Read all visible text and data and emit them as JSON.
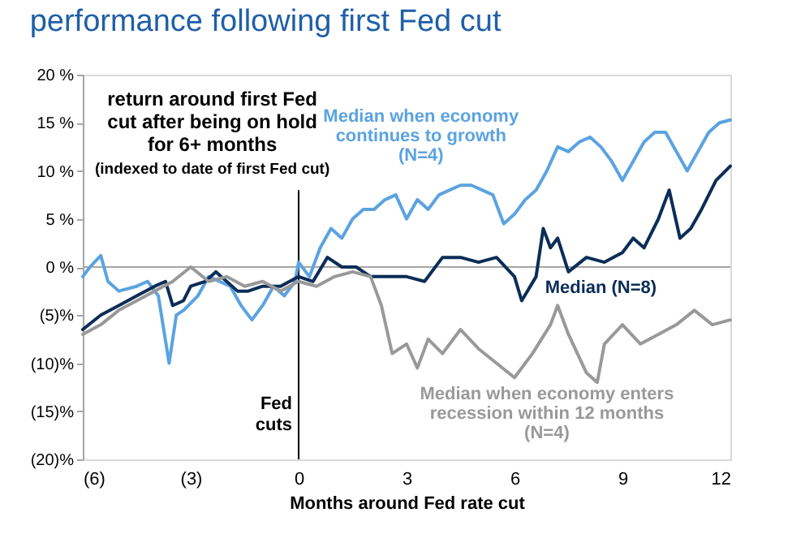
{
  "chart_data": {
    "type": "line",
    "title": "performance following first Fed cut",
    "xlabel": "Months around Fed rate cut",
    "annotations": [
      "return around first Fed cut after being on hold for 6+ months",
      "(indexed to date of first Fed cut)"
    ],
    "xlim": [
      -6,
      12
    ],
    "xticks": [
      {
        "value": -6,
        "label": "(6)"
      },
      {
        "value": -3,
        "label": "(3)"
      },
      0,
      3,
      6,
      9,
      12
    ],
    "ylim": [
      -20,
      20
    ],
    "yticks": [
      {
        "value": -20,
        "label": "(20)%"
      },
      {
        "value": -15,
        "label": "(15)%"
      },
      {
        "value": -10,
        "label": "(10)%"
      },
      {
        "value": -5,
        "label": "(5)%"
      },
      {
        "value": 0,
        "label": "0 %"
      },
      {
        "value": 5,
        "label": "5 %"
      },
      {
        "value": 10,
        "label": "10 %"
      },
      {
        "value": 15,
        "label": "15 %"
      },
      {
        "value": 20,
        "label": "20 %"
      }
    ],
    "grid": false,
    "line_style": "solid",
    "marker": "none",
    "ref_lines": [
      {
        "axis": "x",
        "value": 0,
        "label": "Fed cuts",
        "color": "#000000"
      },
      {
        "axis": "y",
        "value": 0,
        "color": "#a6a6a6"
      }
    ],
    "series": [
      {
        "name": "Median when economy continues to growth (N=4)",
        "color": "#5ba3e0",
        "x": [
          -6,
          -5.8,
          -5.5,
          -5.3,
          -5,
          -4.5,
          -4.2,
          -3.9,
          -3.6,
          -3.4,
          -3.2,
          -2.8,
          -2.5,
          -2.2,
          -1.9,
          -1.6,
          -1.3,
          -1,
          -0.7,
          -0.4,
          -0.1,
          0,
          0.3,
          0.6,
          0.9,
          1.2,
          1.5,
          1.8,
          2.1,
          2.4,
          2.7,
          3,
          3.3,
          3.6,
          3.9,
          4.2,
          4.5,
          4.8,
          5.1,
          5.4,
          5.7,
          6,
          6.3,
          6.6,
          6.9,
          7.2,
          7.5,
          7.8,
          8.1,
          8.4,
          8.7,
          9,
          9.3,
          9.6,
          9.9,
          10.2,
          10.5,
          10.8,
          11.1,
          11.4,
          11.7,
          12
        ],
        "values": [
          -1,
          0,
          1.2,
          -1.5,
          -2.5,
          -2,
          -1.5,
          -3,
          -10,
          -5,
          -4.5,
          -3,
          -1,
          -1.5,
          -2,
          -4,
          -5.5,
          -4,
          -2,
          -3,
          -1.5,
          0.5,
          -1,
          2,
          4,
          3,
          5,
          6,
          6,
          7,
          7.5,
          5,
          7,
          6,
          7.5,
          8,
          8.5,
          8.5,
          8,
          7.5,
          4.5,
          5.5,
          7,
          8,
          10,
          12.5,
          12,
          13,
          13.5,
          12.5,
          11,
          9,
          11,
          13,
          14,
          14,
          12,
          10,
          12,
          14,
          15,
          15.3
        ]
      },
      {
        "name": "Median (N=8)",
        "color": "#0b2d57",
        "x": [
          -6,
          -5.5,
          -5,
          -4.5,
          -4,
          -3.7,
          -3.5,
          -3.2,
          -3,
          -2.6,
          -2.3,
          -2,
          -1.7,
          -1.4,
          -1,
          -0.5,
          0,
          0.4,
          0.8,
          1.2,
          1.6,
          2,
          2.5,
          3,
          3.5,
          4,
          4.5,
          5,
          5.5,
          6,
          6.2,
          6.6,
          6.8,
          7,
          7.2,
          7.5,
          8,
          8.5,
          9,
          9.3,
          9.6,
          10,
          10.3,
          10.6,
          10.9,
          11.2,
          11.6,
          12
        ],
        "values": [
          -6.5,
          -5,
          -4,
          -3,
          -2,
          -1.5,
          -4,
          -3.5,
          -2,
          -1.5,
          -0.5,
          -1.5,
          -2.5,
          -2.5,
          -2,
          -2,
          -1,
          -1.5,
          1,
          0,
          0,
          -1,
          -1,
          -1,
          -1.5,
          1,
          1,
          0.5,
          1,
          -1,
          -3.5,
          -1,
          4,
          2,
          3,
          -0.5,
          1,
          0.5,
          1.5,
          3,
          2,
          5,
          8,
          3,
          4,
          6,
          9,
          10.5
        ]
      },
      {
        "name": "Median when economy enters recession within 12 months (N=4)",
        "color": "#999999",
        "x": [
          -6,
          -5.5,
          -5,
          -4.5,
          -4,
          -3.5,
          -3,
          -2.5,
          -2,
          -1.5,
          -1,
          -0.5,
          0,
          0.5,
          1,
          1.5,
          2,
          2.3,
          2.6,
          3,
          3.3,
          3.6,
          4,
          4.5,
          5,
          5.5,
          6,
          6.5,
          7,
          7.2,
          7.5,
          8,
          8.3,
          8.5,
          9,
          9.5,
          10,
          10.5,
          11,
          11.5,
          12
        ],
        "values": [
          -7,
          -6,
          -4.5,
          -3.5,
          -2.5,
          -1.5,
          0,
          -1.5,
          -1,
          -2,
          -1.5,
          -2.5,
          -1.5,
          -2,
          -1,
          -0.5,
          -1,
          -4,
          -9,
          -8,
          -10.5,
          -7.5,
          -9,
          -6.5,
          -8.5,
          -10,
          -11.5,
          -9,
          -6,
          -4,
          -7,
          -11,
          -12,
          -8,
          -6,
          -8,
          -7,
          -6,
          -4.5,
          -6,
          -5.5
        ]
      }
    ]
  }
}
